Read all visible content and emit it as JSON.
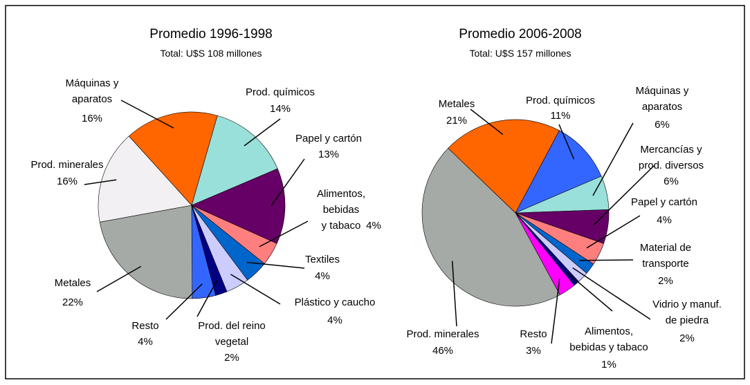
{
  "chart_data": [
    {
      "type": "pie",
      "title": "Promedio 1996-1998",
      "subtitle": "Total: U$S 108 millones",
      "categories": [
        "Prod. químicos",
        "Papel y cartón",
        "Alimentos,\nbebidas\ny tabaco",
        "Textiles",
        "Plástico y caucho",
        "Prod. del reino\nvegetal",
        "Resto",
        "Metales",
        "Prod. minerales",
        "Máquinas y\naparatos"
      ],
      "values": [
        14,
        13,
        4,
        4,
        4,
        2,
        4,
        22,
        16,
        16
      ],
      "value_labels": [
        "14%",
        "13%",
        "4%",
        "4%",
        "4%",
        "2%",
        "4%",
        "22%",
        "16%",
        "16%"
      ],
      "colors": [
        "#99e0da",
        "#660066",
        "#ff7f7f",
        "#0066cc",
        "#ccccff",
        "#000080",
        "#3366ff",
        "#a6aaa6",
        "#f2f0f2",
        "#ff6600"
      ]
    },
    {
      "type": "pie",
      "title": "Promedio 2006-2008",
      "subtitle": "Total: U$S 157 millones",
      "categories": [
        "Prod. químicos",
        "Máquinas y\naparatos",
        "Mercancías y\nprod. diversos",
        "Papel y cartón",
        "Material de\ntransporte",
        "Vidrio y manuf.\nde piedra",
        "Alimentos,\nbebidas y tabaco",
        "Resto",
        "Prod. minerales",
        "Metales"
      ],
      "values": [
        11,
        6,
        6,
        4,
        2,
        2,
        1,
        3,
        46,
        21
      ],
      "value_labels": [
        "11%",
        "6%",
        "6%",
        "4%",
        "2%",
        "2%",
        "1%",
        "3%",
        "46%",
        "21%"
      ],
      "colors": [
        "#3366ff",
        "#99e0da",
        "#660066",
        "#ff7f7f",
        "#0066cc",
        "#ccccff",
        "#000080",
        "#ff00ff",
        "#a6aaa6",
        "#ff6600"
      ]
    }
  ]
}
